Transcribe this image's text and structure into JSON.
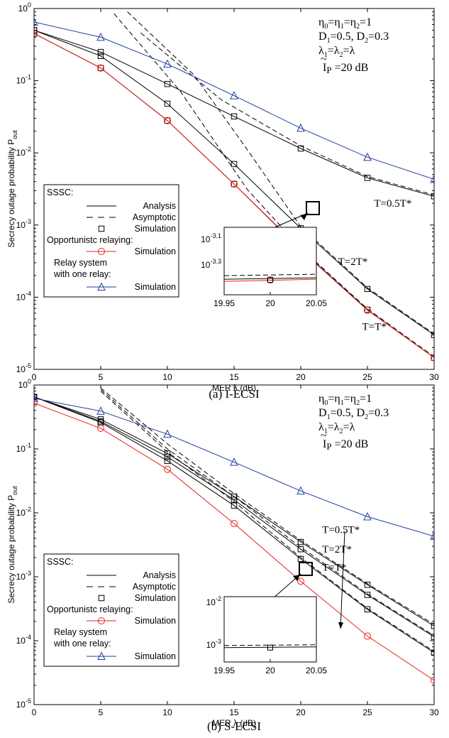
{
  "colors": {
    "analysis": "#000000",
    "opportunistic": "#e8211d",
    "relay": "#1f3e9e"
  },
  "chart_data": [
    {
      "type": "line",
      "caption": "(a)  I-ECSI",
      "xlabel": "MER   λ (dB)",
      "ylabel": "Secrecy outage probability    P",
      "ylabel_sub": "out",
      "xlim": [
        0,
        30
      ],
      "ylim": [
        1e-05,
        1
      ],
      "yscale": "log",
      "xticks": [
        "0",
        "5",
        "10",
        "15",
        "20",
        "25",
        "30"
      ],
      "yticks": [
        {
          "e": "0"
        },
        {
          "e": "-1"
        },
        {
          "e": "-2"
        },
        {
          "e": "-3"
        },
        {
          "e": "-4"
        },
        {
          "e": "-5"
        }
      ],
      "annotations": [
        "η0=η1=η2=1",
        "D1=0.5, D2=0.3",
        "λ1=λ2=λ",
        "Ip =20 dB"
      ],
      "curve_labels": [
        {
          "text": "T=0.5T*",
          "x": 25.5,
          "y": 0.0018
        },
        {
          "text": "T=2T*",
          "x": 22.8,
          "y": 0.00028
        },
        {
          "text": "T=T*",
          "x": 24.6,
          "y": 3.5e-05
        }
      ],
      "legend": {
        "title": "SSSC:",
        "analysis": "Analysis",
        "asymptotic": "Asymptotic",
        "simulation": "Simulation",
        "opp": "Opportunistc relaying:",
        "opp_sim": "Simulation",
        "relay1": "Relay system",
        "relay2": "with one relay:",
        "relay_sim": "Simulation"
      },
      "inset": {
        "xticks": [
          "19.95",
          "20",
          "20.05"
        ],
        "yticks": [
          {
            "e": "-3.1"
          },
          {
            "e": "-3.3"
          }
        ]
      },
      "x": [
        0,
        5,
        10,
        15,
        20,
        25,
        30
      ],
      "series": [
        {
          "group": "SSSC T=0.5T*",
          "analysis": [
            0.5,
            0.25,
            0.09,
            0.032,
            0.0115,
            0.0045,
            0.0025
          ],
          "asymptotic": [
            [
              8,
              0.46
            ],
            [
              14,
              0.055
            ],
            [
              20,
              0.0125
            ],
            [
              25,
              0.0047
            ],
            [
              30,
              0.0026
            ]
          ],
          "simulation": [
            0.5,
            0.25,
            0.09,
            0.032,
            0.0115,
            0.0045,
            0.0025
          ]
        },
        {
          "group": "SSSC T=2T*",
          "analysis": [
            0.5,
            0.22,
            0.048,
            0.007,
            0.0009,
            0.00013,
            3e-05
          ],
          "asymptotic": [
            [
              7,
              0.9
            ],
            [
              12,
              0.12
            ],
            [
              16,
              0.011
            ],
            [
              20,
              0.00095
            ],
            [
              25,
              0.000135
            ],
            [
              30,
              3.1e-05
            ]
          ],
          "simulation": [
            0.5,
            0.22,
            0.048,
            0.007,
            0.0009,
            0.00013,
            3e-05
          ]
        },
        {
          "group": "SSSC T=T*",
          "analysis": [
            0.45,
            0.15,
            0.028,
            0.0037,
            0.00046,
            6.7e-05,
            1.45e-05
          ],
          "asymptotic": [
            [
              6,
              0.85
            ],
            [
              11,
              0.07
            ],
            [
              16,
              0.0031
            ],
            [
              20,
              0.00048
            ],
            [
              25,
              6.9e-05
            ],
            [
              30,
              1.5e-05
            ]
          ],
          "simulation": [
            0.45,
            0.15,
            0.028,
            0.0037,
            0.00046,
            6.7e-05,
            1.45e-05
          ]
        },
        {
          "group": "Opportunistc relaying",
          "simulation": [
            0.45,
            0.15,
            0.028,
            0.0037,
            0.00045,
            6.6e-05,
            1.45e-05
          ]
        },
        {
          "group": "Relay system with one relay",
          "simulation": [
            0.65,
            0.4,
            0.17,
            0.062,
            0.022,
            0.0087,
            0.0043
          ]
        }
      ]
    },
    {
      "type": "line",
      "caption": "(b)  S-ECSI",
      "xlabel": "MER   λ (dB)",
      "ylabel": "Secrecy outage probability    P",
      "ylabel_sub": "out",
      "xlim": [
        0,
        30
      ],
      "ylim": [
        1e-05,
        1
      ],
      "yscale": "log",
      "xticks": [
        "0",
        "5",
        "10",
        "15",
        "20",
        "25",
        "30"
      ],
      "yticks": [
        {
          "e": "0"
        },
        {
          "e": "-1"
        },
        {
          "e": "-2"
        },
        {
          "e": "-3"
        },
        {
          "e": "-4"
        },
        {
          "e": "-5"
        }
      ],
      "annotations": [
        "η0=η1=η2=1",
        "D1=0.5, D2=0.3",
        "λ1=λ2=λ",
        "Ip =20 dB"
      ],
      "curve_labels": [
        {
          "text": "T=0.5T*",
          "x": 21.6,
          "y": 0.0048
        },
        {
          "text": "T=2T*",
          "x": 21.6,
          "y": 0.0024
        },
        {
          "text": "T=T*",
          "x": 21.6,
          "y": 0.00125
        }
      ],
      "legend": {
        "title": "SSSC:",
        "analysis": "Analysis",
        "asymptotic": "Asymptotic",
        "simulation": "Simulation",
        "opp": "Opportunistc relaying:",
        "opp_sim": "Simulation",
        "relay1": "Relay system",
        "relay2": "with one relay:",
        "relay_sim": "Simulation"
      },
      "inset": {
        "xticks": [
          "19.95",
          "20",
          "20.05"
        ],
        "yticks": [
          {
            "e": "-2"
          },
          {
            "e": "-3"
          }
        ]
      },
      "x": [
        0,
        5,
        10,
        15,
        20,
        25,
        30
      ],
      "series": [
        {
          "group": "SSSC T=0.5T*",
          "analysis": [
            0.65,
            0.29,
            0.085,
            0.018,
            0.0035,
            0.00075,
            0.00017
          ],
          "asymptotic": [
            [
              5,
              0.9
            ],
            [
              10,
              0.12
            ],
            [
              15,
              0.02
            ],
            [
              20,
              0.0037
            ],
            [
              25,
              0.00078
            ],
            [
              30,
              0.00018
            ]
          ],
          "simulation": [
            0.65,
            0.29,
            0.085,
            0.018,
            0.0035,
            0.00075,
            0.00017
          ]
        },
        {
          "group": "SSSC T=2T*",
          "analysis": [
            0.65,
            0.27,
            0.075,
            0.016,
            0.0027,
            0.00052,
            0.000115
          ],
          "asymptotic": [
            [
              5,
              0.85
            ],
            [
              10,
              0.1
            ],
            [
              15,
              0.018
            ],
            [
              20,
              0.0029
            ],
            [
              25,
              0.00054
            ],
            [
              30,
              0.00012
            ]
          ],
          "simulation": [
            0.65,
            0.27,
            0.075,
            0.016,
            0.0027,
            0.00052,
            0.000115
          ]
        },
        {
          "group": "SSSC T=T*",
          "analysis": [
            0.65,
            0.26,
            0.065,
            0.013,
            0.0019,
            0.00031,
            6.5e-05
          ],
          "asymptotic": [
            [
              5,
              0.8
            ],
            [
              10,
              0.09
            ],
            [
              15,
              0.015
            ],
            [
              20,
              0.002
            ],
            [
              25,
              0.00032
            ],
            [
              30,
              6.8e-05
            ]
          ],
          "simulation": [
            0.65,
            0.26,
            0.065,
            0.013,
            0.0019,
            0.00031,
            6.5e-05
          ]
        },
        {
          "group": "Opportunistc relaying",
          "simulation": [
            0.52,
            0.21,
            0.048,
            0.0068,
            0.00085,
            0.000118,
            2.4e-05
          ]
        },
        {
          "group": "Relay system with one relay",
          "simulation": [
            0.62,
            0.39,
            0.17,
            0.062,
            0.022,
            0.0087,
            0.0043
          ]
        }
      ]
    }
  ]
}
